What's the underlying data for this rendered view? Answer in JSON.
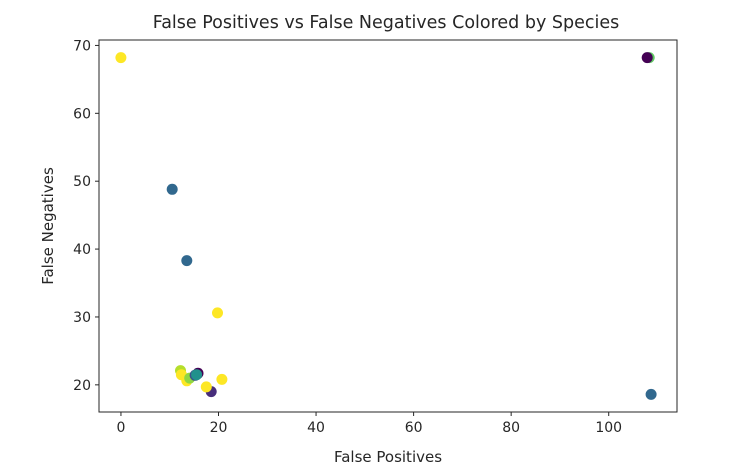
{
  "chart_data": {
    "type": "scatter",
    "title": "False Positives vs False Negatives Colored by Species",
    "xlabel": "False Positives",
    "ylabel": "False Negatives",
    "xlim": [
      -4.5,
      114
    ],
    "ylim": [
      16,
      70.8
    ],
    "xticks": [
      0,
      20,
      40,
      60,
      80,
      100
    ],
    "yticks": [
      20,
      30,
      40,
      50,
      60,
      70
    ],
    "grid": false,
    "legend": "none",
    "colormap": "viridis",
    "points": [
      {
        "x": 0,
        "y": 68.2,
        "color": "#fde725"
      },
      {
        "x": 108.3,
        "y": 68.2,
        "color": "#5ec962"
      },
      {
        "x": 107.9,
        "y": 68.2,
        "color": "#440154"
      },
      {
        "x": 10.5,
        "y": 48.8,
        "color": "#31688e"
      },
      {
        "x": 13.5,
        "y": 38.3,
        "color": "#31688e"
      },
      {
        "x": 19.8,
        "y": 30.6,
        "color": "#fde725"
      },
      {
        "x": 12.2,
        "y": 22.1,
        "color": "#b5de2b"
      },
      {
        "x": 12.4,
        "y": 21.5,
        "color": "#fde725"
      },
      {
        "x": 13.5,
        "y": 20.6,
        "color": "#fde725"
      },
      {
        "x": 14.1,
        "y": 21.0,
        "color": "#90d743"
      },
      {
        "x": 15.2,
        "y": 21.4,
        "color": "#3b528b"
      },
      {
        "x": 15.8,
        "y": 21.7,
        "color": "#440154"
      },
      {
        "x": 15.5,
        "y": 21.5,
        "color": "#21918c"
      },
      {
        "x": 18.5,
        "y": 19.0,
        "color": "#472d7b"
      },
      {
        "x": 17.5,
        "y": 19.7,
        "color": "#fde725"
      },
      {
        "x": 20.7,
        "y": 20.8,
        "color": "#fde725"
      },
      {
        "x": 108.7,
        "y": 18.6,
        "color": "#31688e"
      }
    ]
  }
}
